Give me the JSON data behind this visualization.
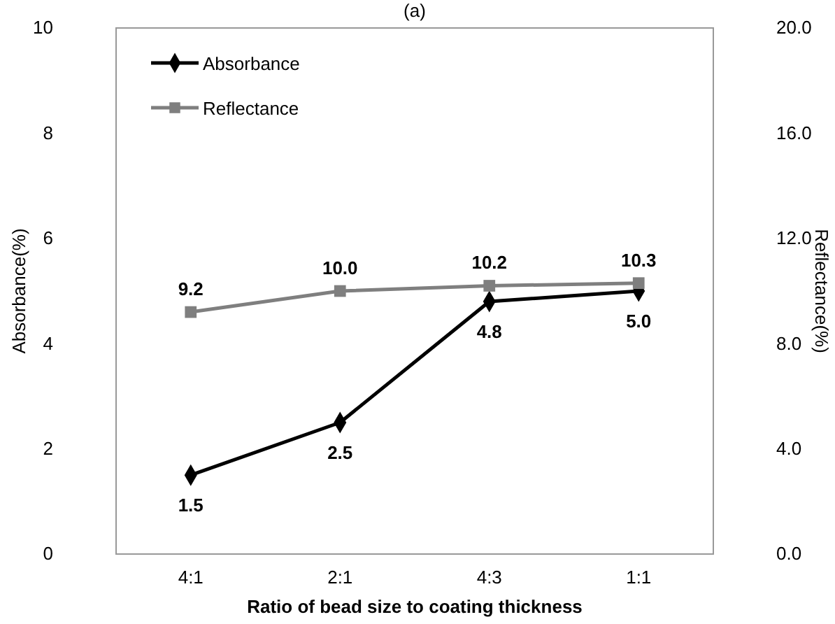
{
  "chart_data": {
    "type": "line",
    "title": "(a)",
    "xlabel": "Ratio of bead size to coating thickness",
    "ylabel": "Absorbance(%)",
    "y2label": "Reflectance(%)",
    "categories": [
      "4:1",
      "2:1",
      "4:3",
      "1:1"
    ],
    "series": [
      {
        "name": "Absorbance",
        "color": "#000000",
        "marker": "diamond",
        "values": [
          1.5,
          2.5,
          4.8,
          5.0
        ],
        "value_labels": [
          "1.5",
          "2.5",
          "4.8",
          "5.0"
        ]
      },
      {
        "name": "Reflectance",
        "color": "#7f7f7f",
        "marker": "square",
        "axis": "y2",
        "values": [
          9.2,
          10.0,
          10.2,
          10.3
        ],
        "value_labels": [
          "9.2",
          "10.0",
          "10.2",
          "10.3"
        ]
      }
    ],
    "ylim": [
      0,
      10
    ],
    "yticks": [
      0,
      2,
      4,
      6,
      8,
      10
    ],
    "y2lim": [
      0,
      20
    ],
    "y2ticks": [
      {
        "value": 0,
        "label": "0.0"
      },
      {
        "value": 4,
        "label": "4.0"
      },
      {
        "value": 8,
        "label": "8.0"
      },
      {
        "value": 12,
        "label": "12.0"
      },
      {
        "value": 16,
        "label": "16.0"
      },
      {
        "value": 20,
        "label": "20.0"
      }
    ],
    "grid": false,
    "legend": "top left"
  }
}
